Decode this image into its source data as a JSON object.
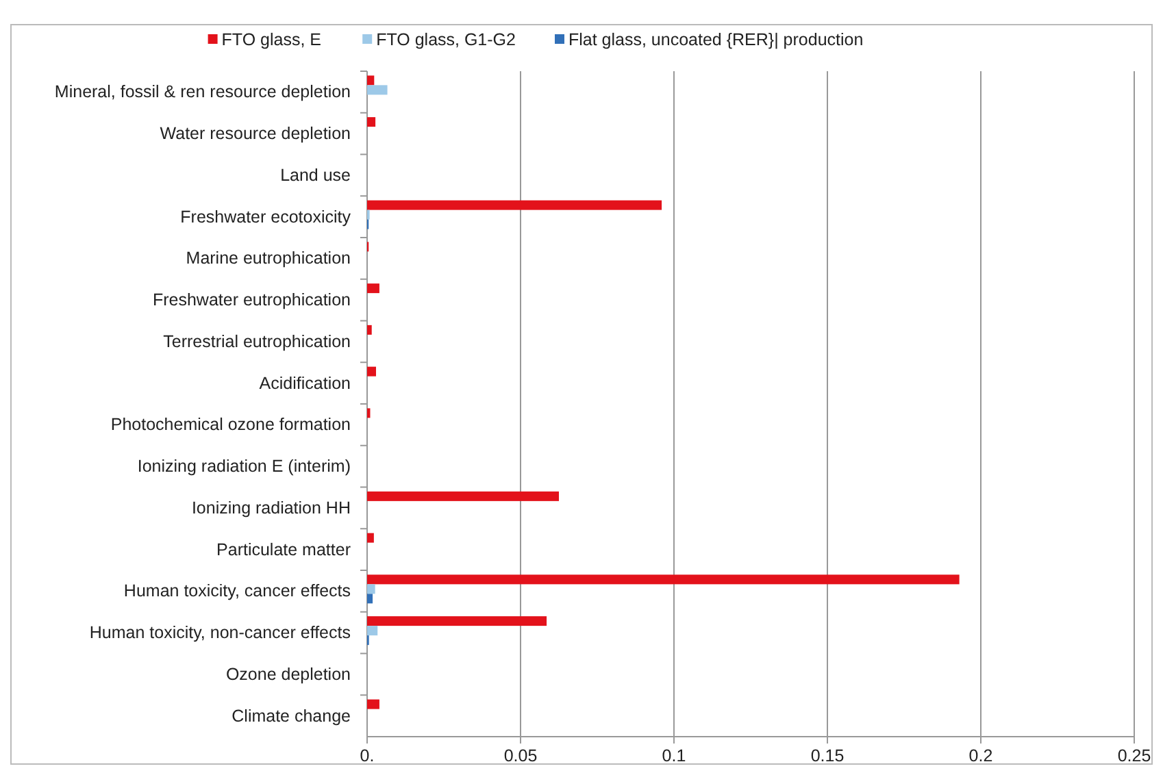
{
  "chart_data": {
    "type": "bar",
    "orientation": "horizontal",
    "categories": [
      "Mineral, fossil & ren resource depletion",
      "Water resource depletion",
      "Land use",
      "Freshwater ecotoxicity",
      "Marine eutrophication",
      "Freshwater eutrophication",
      "Terrestrial eutrophication",
      "Acidification",
      "Photochemical ozone formation",
      "Ionizing radiation E (interim)",
      "Ionizing radiation HH",
      "Particulate matter",
      "Human toxicity, cancer effects",
      "Human toxicity, non-cancer effects",
      "Ozone depletion",
      "Climate change"
    ],
    "series": [
      {
        "name": "FTO glass, E",
        "color": "#e3121b",
        "values": [
          0.0023,
          0.0027,
          null,
          0.096,
          0.0005,
          0.004,
          0.0015,
          0.0029,
          0.001,
          0,
          0.0625,
          0.0022,
          0.193,
          0.0585,
          0,
          0.004
        ]
      },
      {
        "name": "FTO glass, G1-G2",
        "color": "#9dc9e8",
        "values": [
          0.0066,
          0,
          0,
          0.0008,
          0,
          0,
          0,
          0,
          0,
          0,
          0,
          0,
          0.0026,
          0.0034,
          0,
          0
        ]
      },
      {
        "name": "Flat glass, uncoated {RER}| production",
        "color": "#3170b8",
        "values": [
          0,
          0,
          0,
          0.0005,
          0,
          0,
          0,
          0,
          0,
          0,
          0,
          0,
          0.0018,
          0.0006,
          0,
          0
        ]
      }
    ],
    "xlim": [
      0,
      0.25
    ],
    "xticks": [
      {
        "value": 0,
        "label": "0."
      },
      0.05,
      0.1,
      0.15,
      0.2,
      0.25
    ],
    "grid": "x",
    "legend": "top"
  }
}
